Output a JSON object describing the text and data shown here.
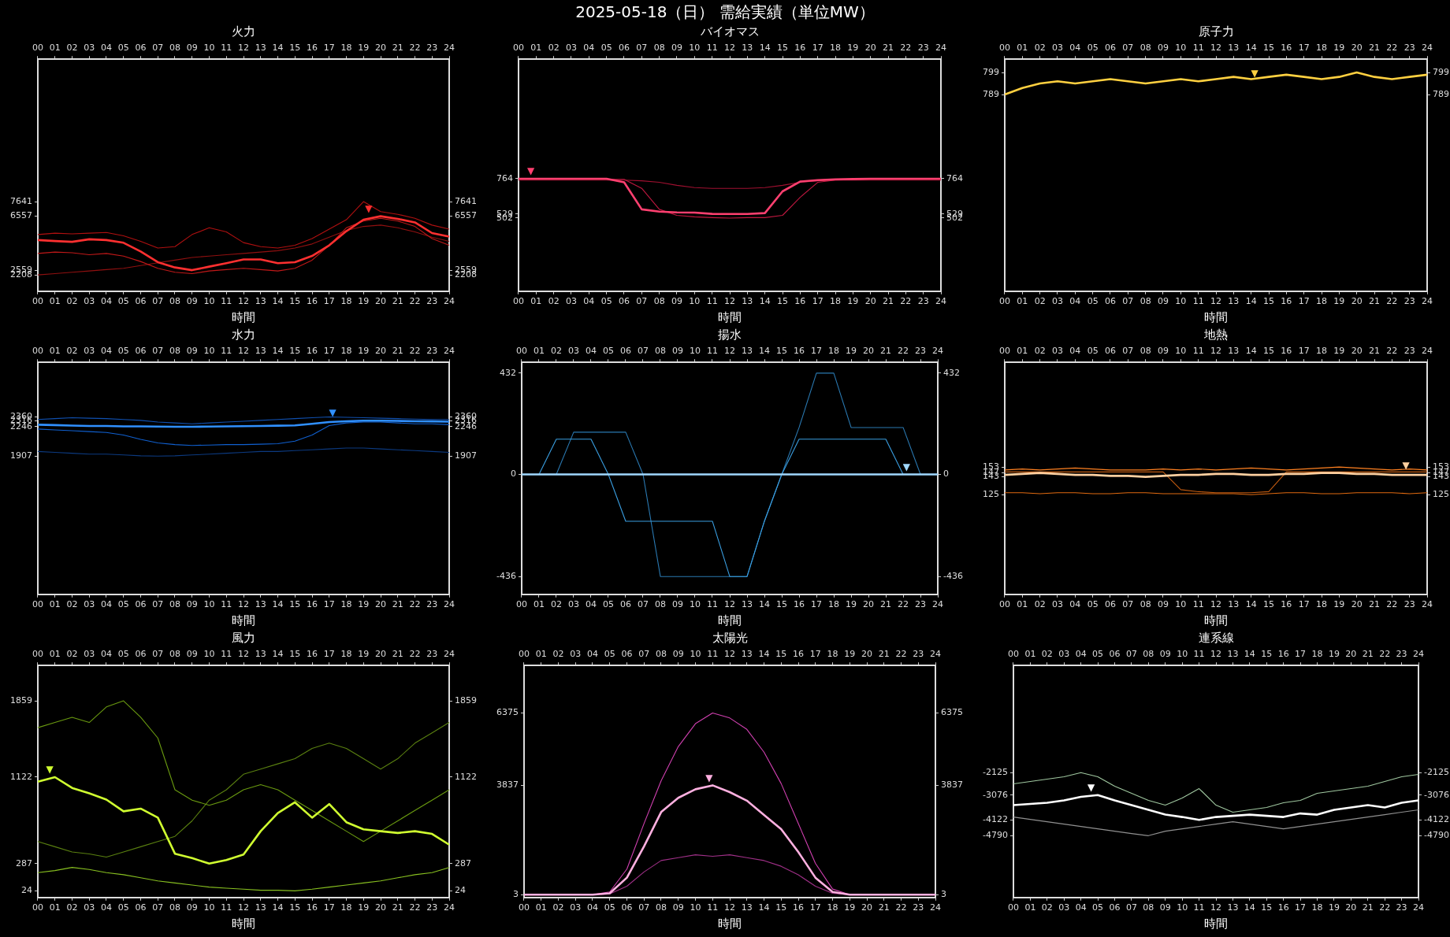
{
  "chart_data": [
    {
      "type": "line",
      "title": "火力",
      "xlabel": "時間",
      "annotations": [
        "2025-05-18（日） 需給実績（単位MW）",
        {
          "text": "▼",
          "x": 19.3,
          "y": 6557
        }
      ],
      "grid": false,
      "legend": false,
      "marker": "none",
      "line_style": "solid",
      "x": [
        0,
        1,
        2,
        3,
        4,
        5,
        6,
        7,
        8,
        9,
        10,
        11,
        12,
        13,
        14,
        15,
        16,
        17,
        18,
        19,
        20,
        21,
        22,
        23,
        24
      ],
      "xlim": [
        0,
        24
      ],
      "xticks": [
        {
          "value": 0,
          "label": "00"
        },
        {
          "value": 1,
          "label": "01"
        },
        {
          "value": 2,
          "label": "02"
        },
        {
          "value": 3,
          "label": "03"
        },
        {
          "value": 4,
          "label": "04"
        },
        {
          "value": 5,
          "label": "05"
        },
        {
          "value": 6,
          "label": "06"
        },
        {
          "value": 7,
          "label": "07"
        },
        {
          "value": 8,
          "label": "08"
        },
        {
          "value": 9,
          "label": "09"
        },
        10,
        11,
        12,
        13,
        14,
        15,
        16,
        17,
        18,
        19,
        20,
        21,
        22,
        23,
        24
      ],
      "x2lim": [
        0,
        24
      ],
      "x2ticks": [
        {
          "value": 0,
          "label": "00"
        },
        {
          "value": 1,
          "label": "01"
        },
        {
          "value": 2,
          "label": "02"
        },
        {
          "value": 3,
          "label": "03"
        },
        {
          "value": 4,
          "label": "04"
        },
        {
          "value": 5,
          "label": "05"
        },
        {
          "value": 6,
          "label": "06"
        },
        {
          "value": 7,
          "label": "07"
        },
        {
          "value": 8,
          "label": "08"
        },
        {
          "value": 9,
          "label": "09"
        },
        10,
        11,
        12,
        13,
        14,
        15,
        16,
        17,
        18,
        19,
        20,
        21,
        22,
        23,
        24
      ],
      "ylim": [
        1000,
        18200
      ],
      "yticks": [
        2208,
        2559,
        6557,
        7641
      ],
      "y2lim": [
        1000,
        18200
      ],
      "y2ticks": [
        2208,
        2559,
        6557,
        7641
      ],
      "series": [
        {
          "color": "#ff3030",
          "values": [
            4790,
            4720,
            4660,
            4850,
            4790,
            4590,
            3940,
            3150,
            2760,
            2559,
            2820,
            3080,
            3350,
            3350,
            3080,
            3150,
            3610,
            4400,
            5450,
            6300,
            6557,
            6360,
            6100,
            5310,
            5050
          ]
        },
        {
          "color": "#b01010",
          "values": [
            5200,
            5300,
            5250,
            5300,
            5350,
            5100,
            4700,
            4200,
            4300,
            5200,
            5700,
            5400,
            4600,
            4300,
            4200,
            4400,
            4900,
            5600,
            6300,
            7641,
            6900,
            6700,
            6400,
            5900,
            5600
          ]
        },
        {
          "color": "#c01818",
          "values": [
            3800,
            3900,
            3850,
            3700,
            3800,
            3600,
            3200,
            2700,
            2400,
            2300,
            2500,
            2600,
            2700,
            2600,
            2500,
            2700,
            3300,
            4400,
            5700,
            6200,
            6400,
            6200,
            5800,
            4900,
            4400
          ]
        },
        {
          "color": "#901010",
          "values": [
            2208,
            2300,
            2400,
            2500,
            2600,
            2700,
            2900,
            3100,
            3300,
            3500,
            3600,
            3700,
            3800,
            3900,
            4000,
            4200,
            4500,
            5000,
            5500,
            5800,
            5900,
            5700,
            5400,
            5000,
            4700
          ]
        }
      ]
    },
    {
      "type": "line",
      "title": "バイオマス",
      "xlabel": "時間",
      "annotations": [
        {
          "text": "▼",
          "x": 0.7,
          "y": 764
        }
      ],
      "grid": false,
      "legend": false,
      "marker": "none",
      "line_style": "solid",
      "x": [
        0,
        1,
        2,
        3,
        4,
        5,
        6,
        7,
        8,
        9,
        10,
        11,
        12,
        13,
        14,
        15,
        16,
        17,
        18,
        19,
        20,
        21,
        22,
        23,
        24
      ],
      "xlim": [
        0,
        24
      ],
      "xticks": [
        {
          "value": 0,
          "label": "00"
        },
        {
          "value": 1,
          "label": "01"
        },
        {
          "value": 2,
          "label": "02"
        },
        {
          "value": 3,
          "label": "03"
        },
        {
          "value": 4,
          "label": "04"
        },
        {
          "value": 5,
          "label": "05"
        },
        {
          "value": 6,
          "label": "06"
        },
        {
          "value": 7,
          "label": "07"
        },
        {
          "value": 8,
          "label": "08"
        },
        {
          "value": 9,
          "label": "09"
        },
        10,
        11,
        12,
        13,
        14,
        15,
        16,
        17,
        18,
        19,
        20,
        21,
        22,
        23,
        24
      ],
      "x2lim": [
        0,
        24
      ],
      "x2ticks": [
        {
          "value": 0,
          "label": "00"
        },
        {
          "value": 1,
          "label": "01"
        },
        {
          "value": 2,
          "label": "02"
        },
        {
          "value": 3,
          "label": "03"
        },
        {
          "value": 4,
          "label": "04"
        },
        {
          "value": 5,
          "label": "05"
        },
        {
          "value": 6,
          "label": "06"
        },
        {
          "value": 7,
          "label": "07"
        },
        {
          "value": 8,
          "label": "08"
        },
        {
          "value": 9,
          "label": "09"
        },
        10,
        11,
        12,
        13,
        14,
        15,
        16,
        17,
        18,
        19,
        20,
        21,
        22,
        23,
        24
      ],
      "ylim": [
        15,
        1560
      ],
      "yticks": [
        502,
        529,
        764
      ],
      "y2lim": [
        15,
        1560
      ],
      "y2ticks": [
        502,
        529,
        764
      ],
      "series": [
        {
          "color": "#ff4070",
          "values": [
            764,
            764,
            764,
            764,
            764,
            764,
            740,
            560,
            545,
            540,
            538,
            530,
            529,
            529,
            535,
            680,
            745,
            755,
            760,
            762,
            764,
            764,
            764,
            764,
            764
          ]
        },
        {
          "color": "#c01840",
          "values": [
            760,
            760,
            760,
            760,
            760,
            760,
            760,
            700,
            560,
            520,
            510,
            505,
            502,
            505,
            505,
            520,
            640,
            740,
            755,
            758,
            760,
            760,
            760,
            760,
            760
          ]
        },
        {
          "color": "#a01030",
          "values": [
            755,
            755,
            755,
            755,
            755,
            755,
            755,
            750,
            740,
            720,
            705,
            700,
            700,
            700,
            705,
            720,
            740,
            750,
            755,
            755,
            755,
            755,
            755,
            755,
            755
          ]
        }
      ]
    },
    {
      "type": "line",
      "title": "原子力",
      "xlabel": "時間",
      "annotations": [
        {
          "text": "▼",
          "x": 14.2,
          "y": 795
        }
      ],
      "grid": false,
      "legend": false,
      "marker": "none",
      "line_style": "solid",
      "x": [
        0,
        1,
        2,
        3,
        4,
        5,
        6,
        7,
        8,
        9,
        10,
        11,
        12,
        13,
        14,
        15,
        16,
        17,
        18,
        19,
        20,
        21,
        22,
        23,
        24
      ],
      "xlim": [
        0,
        24
      ],
      "xticks": [
        {
          "value": 0,
          "label": "00"
        },
        {
          "value": 1,
          "label": "01"
        },
        {
          "value": 2,
          "label": "02"
        },
        {
          "value": 3,
          "label": "03"
        },
        {
          "value": 4,
          "label": "04"
        },
        {
          "value": 5,
          "label": "05"
        },
        {
          "value": 6,
          "label": "06"
        },
        {
          "value": 7,
          "label": "07"
        },
        {
          "value": 8,
          "label": "08"
        },
        {
          "value": 9,
          "label": "09"
        },
        10,
        11,
        12,
        13,
        14,
        15,
        16,
        17,
        18,
        19,
        20,
        21,
        22,
        23,
        24
      ],
      "x2lim": [
        0,
        24
      ],
      "x2ticks": [
        {
          "value": 0,
          "label": "00"
        },
        {
          "value": 1,
          "label": "01"
        },
        {
          "value": 2,
          "label": "02"
        },
        {
          "value": 3,
          "label": "03"
        },
        {
          "value": 4,
          "label": "04"
        },
        {
          "value": 5,
          "label": "05"
        },
        {
          "value": 6,
          "label": "06"
        },
        {
          "value": 7,
          "label": "07"
        },
        {
          "value": 8,
          "label": "08"
        },
        {
          "value": 9,
          "label": "09"
        },
        10,
        11,
        12,
        13,
        14,
        15,
        16,
        17,
        18,
        19,
        20,
        21,
        22,
        23,
        24
      ],
      "ylim": [
        700,
        805
      ],
      "yticks": [
        789,
        799
      ],
      "y2lim": [
        700,
        805
      ],
      "y2ticks": [
        789,
        799
      ],
      "series": [
        {
          "color": "#ffd040",
          "values": [
            789,
            792,
            794,
            795,
            794,
            795,
            796,
            795,
            794,
            795,
            796,
            795,
            796,
            797,
            796,
            797,
            798,
            797,
            796,
            797,
            799,
            797,
            796,
            797,
            798
          ]
        }
      ]
    },
    {
      "type": "line",
      "title": "水力",
      "xlabel": "時間",
      "annotations": [
        {
          "text": "▼",
          "x": 17.2,
          "y": 2316
        }
      ],
      "grid": false,
      "legend": false,
      "marker": "none",
      "line_style": "solid",
      "x": [
        0,
        1,
        2,
        3,
        4,
        5,
        6,
        7,
        8,
        9,
        10,
        11,
        12,
        13,
        14,
        15,
        16,
        17,
        18,
        19,
        20,
        21,
        22,
        23,
        24
      ],
      "xlim": [
        0,
        24
      ],
      "xticks": [
        {
          "value": 0,
          "label": "00"
        },
        {
          "value": 1,
          "label": "01"
        },
        {
          "value": 2,
          "label": "02"
        },
        {
          "value": 3,
          "label": "03"
        },
        {
          "value": 4,
          "label": "04"
        },
        {
          "value": 5,
          "label": "05"
        },
        {
          "value": 6,
          "label": "06"
        },
        {
          "value": 7,
          "label": "07"
        },
        {
          "value": 8,
          "label": "08"
        },
        {
          "value": 9,
          "label": "09"
        },
        10,
        11,
        12,
        13,
        14,
        15,
        16,
        17,
        18,
        19,
        20,
        21,
        22,
        23,
        24
      ],
      "x2lim": [
        0,
        24
      ],
      "x2ticks": [
        {
          "value": 0,
          "label": "00"
        },
        {
          "value": 1,
          "label": "01"
        },
        {
          "value": 2,
          "label": "02"
        },
        {
          "value": 3,
          "label": "03"
        },
        {
          "value": 4,
          "label": "04"
        },
        {
          "value": 5,
          "label": "05"
        },
        {
          "value": 6,
          "label": "06"
        },
        {
          "value": 7,
          "label": "07"
        },
        {
          "value": 8,
          "label": "08"
        },
        {
          "value": 9,
          "label": "09"
        },
        10,
        11,
        12,
        13,
        14,
        15,
        16,
        17,
        18,
        19,
        20,
        21,
        22,
        23,
        24
      ],
      "ylim": [
        310,
        2990
      ],
      "yticks": [
        1907,
        2246,
        2316,
        2360
      ],
      "y2lim": [
        310,
        2990
      ],
      "y2ticks": [
        1907,
        2246,
        2316,
        2360
      ],
      "series": [
        {
          "color": "#3090ff",
          "values": [
            2270,
            2265,
            2260,
            2255,
            2255,
            2250,
            2250,
            2248,
            2246,
            2246,
            2248,
            2250,
            2252,
            2255,
            2258,
            2262,
            2280,
            2300,
            2310,
            2316,
            2316,
            2314,
            2310,
            2308,
            2305
          ]
        },
        {
          "color": "#1060d0",
          "values": [
            2220,
            2210,
            2200,
            2190,
            2180,
            2150,
            2100,
            2060,
            2040,
            2030,
            2035,
            2040,
            2040,
            2045,
            2050,
            2080,
            2150,
            2260,
            2290,
            2300,
            2300,
            2290,
            2280,
            2280,
            2270
          ]
        },
        {
          "color": "#0c3a80",
          "values": [
            1960,
            1950,
            1940,
            1930,
            1930,
            1920,
            1910,
            1907,
            1910,
            1920,
            1930,
            1940,
            1950,
            1960,
            1960,
            1970,
            1980,
            1990,
            2000,
            2000,
            1990,
            1980,
            1970,
            1960,
            1950
          ]
        },
        {
          "color": "#1050b0",
          "values": [
            2330,
            2340,
            2350,
            2345,
            2340,
            2330,
            2320,
            2300,
            2290,
            2280,
            2290,
            2300,
            2310,
            2320,
            2330,
            2340,
            2350,
            2360,
            2355,
            2350,
            2345,
            2340,
            2335,
            2330,
            2330
          ]
        }
      ]
    },
    {
      "type": "line",
      "title": "揚水",
      "xlabel": "時間",
      "annotations": [
        {
          "text": "▼",
          "x": 22.2,
          "y": 0
        }
      ],
      "grid": false,
      "legend": false,
      "marker": "none",
      "line_style": "solid",
      "x": [
        0,
        1,
        2,
        3,
        4,
        5,
        6,
        7,
        8,
        9,
        10,
        11,
        12,
        13,
        14,
        15,
        16,
        17,
        18,
        19,
        20,
        21,
        22,
        23,
        24
      ],
      "xlim": [
        0,
        24
      ],
      "xticks": [
        {
          "value": 0,
          "label": "00"
        },
        {
          "value": 1,
          "label": "01"
        },
        {
          "value": 2,
          "label": "02"
        },
        {
          "value": 3,
          "label": "03"
        },
        {
          "value": 4,
          "label": "04"
        },
        {
          "value": 5,
          "label": "05"
        },
        {
          "value": 6,
          "label": "06"
        },
        {
          "value": 7,
          "label": "07"
        },
        {
          "value": 8,
          "label": "08"
        },
        {
          "value": 9,
          "label": "09"
        },
        10,
        11,
        12,
        13,
        14,
        15,
        16,
        17,
        18,
        19,
        20,
        21,
        22,
        23,
        24
      ],
      "x2lim": [
        0,
        24
      ],
      "x2ticks": [
        {
          "value": 0,
          "label": "00"
        },
        {
          "value": 1,
          "label": "01"
        },
        {
          "value": 2,
          "label": "02"
        },
        {
          "value": 3,
          "label": "03"
        },
        {
          "value": 4,
          "label": "04"
        },
        {
          "value": 5,
          "label": "05"
        },
        {
          "value": 6,
          "label": "06"
        },
        {
          "value": 7,
          "label": "07"
        },
        {
          "value": 8,
          "label": "08"
        },
        {
          "value": 9,
          "label": "09"
        },
        10,
        11,
        12,
        13,
        14,
        15,
        16,
        17,
        18,
        19,
        20,
        21,
        22,
        23,
        24
      ],
      "ylim": [
        -512,
        478
      ],
      "yticks": [
        -436,
        0,
        432
      ],
      "y2lim": [
        -512,
        478
      ],
      "y2ticks": [
        -436,
        0,
        432
      ],
      "series": [
        {
          "color": "#a0d8ff",
          "values": [
            0,
            0,
            0,
            0,
            0,
            0,
            0,
            0,
            0,
            0,
            0,
            0,
            0,
            0,
            0,
            0,
            0,
            0,
            0,
            0,
            0,
            0,
            0,
            0,
            0
          ]
        },
        {
          "color": "#3a9ee0",
          "values": [
            0,
            0,
            150,
            150,
            150,
            0,
            -200,
            -200,
            -200,
            -200,
            -200,
            -200,
            -436,
            -436,
            -200,
            0,
            150,
            150,
            150,
            150,
            150,
            150,
            0,
            0,
            0
          ]
        },
        {
          "color": "#2a78b0",
          "values": [
            0,
            0,
            0,
            180,
            180,
            180,
            180,
            0,
            -436,
            -436,
            -436,
            -436,
            -436,
            -436,
            -200,
            0,
            200,
            432,
            432,
            200,
            200,
            200,
            200,
            0,
            0
          ]
        }
      ]
    },
    {
      "type": "line",
      "title": "地熱",
      "xlabel": "時間",
      "annotations": [
        {
          "text": "▼",
          "x": 22.8,
          "y": 147
        }
      ],
      "grid": false,
      "legend": false,
      "marker": "none",
      "line_style": "solid",
      "x": [
        0,
        1,
        2,
        3,
        4,
        5,
        6,
        7,
        8,
        9,
        10,
        11,
        12,
        13,
        14,
        15,
        16,
        17,
        18,
        19,
        20,
        21,
        22,
        23,
        24
      ],
      "xlim": [
        0,
        24
      ],
      "xticks": [
        {
          "value": 0,
          "label": "00"
        },
        {
          "value": 1,
          "label": "01"
        },
        {
          "value": 2,
          "label": "02"
        },
        {
          "value": 3,
          "label": "03"
        },
        {
          "value": 4,
          "label": "04"
        },
        {
          "value": 5,
          "label": "05"
        },
        {
          "value": 6,
          "label": "06"
        },
        {
          "value": 7,
          "label": "07"
        },
        {
          "value": 8,
          "label": "08"
        },
        {
          "value": 9,
          "label": "09"
        },
        10,
        11,
        12,
        13,
        14,
        15,
        16,
        17,
        18,
        19,
        20,
        21,
        22,
        23,
        24
      ],
      "x2lim": [
        0,
        24
      ],
      "x2ticks": [
        {
          "value": 0,
          "label": "00"
        },
        {
          "value": 1,
          "label": "01"
        },
        {
          "value": 2,
          "label": "02"
        },
        {
          "value": 3,
          "label": "03"
        },
        {
          "value": 4,
          "label": "04"
        },
        {
          "value": 5,
          "label": "05"
        },
        {
          "value": 6,
          "label": "06"
        },
        {
          "value": 7,
          "label": "07"
        },
        {
          "value": 8,
          "label": "08"
        },
        {
          "value": 9,
          "label": "09"
        },
        10,
        11,
        12,
        13,
        14,
        15,
        16,
        17,
        18,
        19,
        20,
        21,
        22,
        23,
        24
      ],
      "ylim": [
        24,
        259
      ],
      "yticks": [
        125,
        143,
        147,
        153
      ],
      "y2lim": [
        24,
        259
      ],
      "y2ticks": [
        125,
        143,
        147,
        153
      ],
      "series": [
        {
          "color": "#ffd0a0",
          "values": [
            145,
            146,
            147,
            146,
            145,
            145,
            144,
            144,
            143,
            144,
            145,
            145,
            146,
            146,
            145,
            145,
            146,
            146,
            147,
            147,
            146,
            146,
            145,
            145,
            145
          ]
        },
        {
          "color": "#ff8020",
          "values": [
            150,
            151,
            150,
            151,
            152,
            151,
            150,
            150,
            150,
            151,
            150,
            151,
            150,
            151,
            152,
            151,
            150,
            151,
            152,
            153,
            152,
            151,
            150,
            151,
            150
          ]
        },
        {
          "color": "#e06a10",
          "values": [
            127,
            127,
            126,
            127,
            127,
            126,
            126,
            127,
            127,
            126,
            126,
            126,
            126,
            126,
            125,
            126,
            127,
            127,
            126,
            126,
            127,
            127,
            127,
            126,
            127
          ]
        },
        {
          "color": "#c05a10",
          "values": [
            148,
            148,
            148,
            148,
            148,
            148,
            148,
            148,
            148,
            148,
            130,
            128,
            127,
            127,
            127,
            128,
            148,
            148,
            148,
            148,
            148,
            148,
            148,
            148,
            148
          ]
        }
      ]
    },
    {
      "type": "line",
      "title": "風力",
      "xlabel": "時間",
      "annotations": [
        {
          "text": "▼",
          "x": 0.7,
          "y": 1122
        }
      ],
      "grid": false,
      "legend": false,
      "marker": "none",
      "line_style": "solid",
      "x": [
        0,
        1,
        2,
        3,
        4,
        5,
        6,
        7,
        8,
        9,
        10,
        11,
        12,
        13,
        14,
        15,
        16,
        17,
        18,
        19,
        20,
        21,
        22,
        23,
        24
      ],
      "xlim": [
        0,
        24
      ],
      "xticks": [
        {
          "value": 0,
          "label": "00"
        },
        {
          "value": 1,
          "label": "01"
        },
        {
          "value": 2,
          "label": "02"
        },
        {
          "value": 3,
          "label": "03"
        },
        {
          "value": 4,
          "label": "04"
        },
        {
          "value": 5,
          "label": "05"
        },
        {
          "value": 6,
          "label": "06"
        },
        {
          "value": 7,
          "label": "07"
        },
        {
          "value": 8,
          "label": "08"
        },
        {
          "value": 9,
          "label": "09"
        },
        10,
        11,
        12,
        13,
        14,
        15,
        16,
        17,
        18,
        19,
        20,
        21,
        22,
        23,
        24
      ],
      "x2lim": [
        0,
        24
      ],
      "x2ticks": [
        {
          "value": 0,
          "label": "00"
        },
        {
          "value": 1,
          "label": "01"
        },
        {
          "value": 2,
          "label": "02"
        },
        {
          "value": 3,
          "label": "03"
        },
        {
          "value": 4,
          "label": "04"
        },
        {
          "value": 5,
          "label": "05"
        },
        {
          "value": 6,
          "label": "06"
        },
        {
          "value": 7,
          "label": "07"
        },
        {
          "value": 8,
          "label": "08"
        },
        {
          "value": 9,
          "label": "09"
        },
        10,
        11,
        12,
        13,
        14,
        15,
        16,
        17,
        18,
        19,
        20,
        21,
        22,
        23,
        24
      ],
      "ylim": [
        -40,
        2200
      ],
      "yticks": [
        24,
        287,
        1122,
        1859
      ],
      "y2lim": [
        -40,
        2200
      ],
      "y2ticks": [
        24,
        287,
        1122,
        1859
      ],
      "series": [
        {
          "color": "#d0ff30",
          "values": [
            1078,
            1122,
            1018,
            966,
            905,
            792,
            818,
            731,
            383,
            340,
            287,
            322,
            374,
            600,
            775,
            879,
            731,
            862,
            687,
            618,
            600,
            583,
            600,
            574,
            470
          ]
        },
        {
          "color": "#6a9a10",
          "values": [
            1600,
            1650,
            1700,
            1650,
            1800,
            1859,
            1700,
            1500,
            1000,
            900,
            850,
            900,
            1000,
            1050,
            1000,
            900,
            800,
            700,
            600,
            500,
            600,
            700,
            800,
            900,
            1000
          ]
        },
        {
          "color": "#88c020",
          "values": [
            200,
            220,
            250,
            230,
            200,
            180,
            150,
            120,
            100,
            80,
            60,
            50,
            40,
            30,
            30,
            24,
            40,
            60,
            80,
            100,
            120,
            150,
            180,
            200,
            250
          ]
        },
        {
          "color": "#5a8010",
          "values": [
            500,
            450,
            400,
            380,
            350,
            400,
            450,
            500,
            550,
            700,
            900,
            1000,
            1150,
            1200,
            1250,
            1300,
            1400,
            1450,
            1400,
            1300,
            1200,
            1300,
            1450,
            1550,
            1650
          ]
        }
      ]
    },
    {
      "type": "line",
      "title": "太陽光",
      "xlabel": "時間",
      "annotations": [
        {
          "text": "▼",
          "x": 10.8,
          "y": 3837
        }
      ],
      "grid": false,
      "legend": false,
      "marker": "none",
      "line_style": "solid",
      "x": [
        0,
        1,
        2,
        3,
        4,
        5,
        6,
        7,
        8,
        9,
        10,
        11,
        12,
        13,
        14,
        15,
        16,
        17,
        18,
        19,
        20,
        21,
        22,
        23,
        24
      ],
      "xlim": [
        0,
        24
      ],
      "xticks": [
        {
          "value": 0,
          "label": "00"
        },
        {
          "value": 1,
          "label": "01"
        },
        {
          "value": 2,
          "label": "02"
        },
        {
          "value": 3,
          "label": "03"
        },
        {
          "value": 4,
          "label": "04"
        },
        {
          "value": 5,
          "label": "05"
        },
        {
          "value": 6,
          "label": "06"
        },
        {
          "value": 7,
          "label": "07"
        },
        {
          "value": 8,
          "label": "08"
        },
        {
          "value": 9,
          "label": "09"
        },
        10,
        11,
        12,
        13,
        14,
        15,
        16,
        17,
        18,
        19,
        20,
        21,
        22,
        23,
        24
      ],
      "x2lim": [
        0,
        24
      ],
      "x2ticks": [
        {
          "value": 0,
          "label": "00"
        },
        {
          "value": 1,
          "label": "01"
        },
        {
          "value": 2,
          "label": "02"
        },
        {
          "value": 3,
          "label": "03"
        },
        {
          "value": 4,
          "label": "04"
        },
        {
          "value": 5,
          "label": "05"
        },
        {
          "value": 6,
          "label": "06"
        },
        {
          "value": 7,
          "label": "07"
        },
        {
          "value": 8,
          "label": "08"
        },
        {
          "value": 9,
          "label": "09"
        },
        10,
        11,
        12,
        13,
        14,
        15,
        16,
        17,
        18,
        19,
        20,
        21,
        22,
        23,
        24
      ],
      "ylim": [
        -95,
        8040
      ],
      "yticks": [
        3,
        3837,
        6375
      ],
      "y2lim": [
        -95,
        8040
      ],
      "y2ticks": [
        3,
        3837,
        6375
      ],
      "series": [
        {
          "color": "#ffb0e0",
          "values": [
            3,
            3,
            3,
            3,
            3,
            50,
            600,
            1700,
            2900,
            3400,
            3700,
            3837,
            3600,
            3300,
            2800,
            2300,
            1500,
            600,
            100,
            3,
            3,
            3,
            3,
            3,
            3
          ]
        },
        {
          "color": "#d040b0",
          "values": [
            null,
            null,
            null,
            null,
            3,
            100,
            900,
            2500,
            4000,
            5200,
            6000,
            6375,
            6200,
            5800,
            5000,
            3900,
            2500,
            1100,
            200,
            3,
            null,
            null,
            null,
            null,
            null
          ]
        },
        {
          "color": "#a03088",
          "values": [
            null,
            null,
            null,
            null,
            3,
            30,
            300,
            800,
            1200,
            1300,
            1400,
            1350,
            1400,
            1300,
            1200,
            1000,
            700,
            300,
            50,
            3,
            null,
            null,
            null,
            null,
            null
          ]
        }
      ]
    },
    {
      "type": "line",
      "title": "連系線",
      "xlabel": "時間",
      "annotations": [
        {
          "text": "▼",
          "x": 4.6,
          "y": -3076
        }
      ],
      "grid": false,
      "legend": false,
      "marker": "none",
      "line_style": "solid",
      "x": [
        0,
        1,
        2,
        3,
        4,
        5,
        6,
        7,
        8,
        9,
        10,
        11,
        12,
        13,
        14,
        15,
        16,
        17,
        18,
        19,
        20,
        21,
        22,
        23,
        24
      ],
      "xlim": [
        0,
        24
      ],
      "xticks": [
        {
          "value": 0,
          "label": "00"
        },
        {
          "value": 1,
          "label": "01"
        },
        {
          "value": 2,
          "label": "02"
        },
        {
          "value": 3,
          "label": "03"
        },
        {
          "value": 4,
          "label": "04"
        },
        {
          "value": 5,
          "label": "05"
        },
        {
          "value": 6,
          "label": "06"
        },
        {
          "value": 7,
          "label": "07"
        },
        {
          "value": 8,
          "label": "08"
        },
        {
          "value": 9,
          "label": "09"
        },
        10,
        11,
        12,
        13,
        14,
        15,
        16,
        17,
        18,
        19,
        20,
        21,
        22,
        23,
        24
      ],
      "x2lim": [
        0,
        24
      ],
      "x2ticks": [
        {
          "value": 0,
          "label": "00"
        },
        {
          "value": 1,
          "label": "01"
        },
        {
          "value": 2,
          "label": "02"
        },
        {
          "value": 3,
          "label": "03"
        },
        {
          "value": 4,
          "label": "04"
        },
        {
          "value": 5,
          "label": "05"
        },
        {
          "value": 6,
          "label": "06"
        },
        {
          "value": 7,
          "label": "07"
        },
        {
          "value": 8,
          "label": "08"
        },
        {
          "value": 9,
          "label": "09"
        },
        10,
        11,
        12,
        13,
        14,
        15,
        16,
        17,
        18,
        19,
        20,
        21,
        22,
        23,
        24
      ],
      "ylim": [
        -7400,
        2400
      ],
      "yticks": [
        -4790,
        -4122,
        -3076,
        -2125
      ],
      "y2lim": [
        -7400,
        2400
      ],
      "y2ticks": [
        -4790,
        -4122,
        -3076,
        -2125
      ],
      "series": [
        {
          "color": "#ffffff",
          "values": [
            -3500,
            -3450,
            -3400,
            -3300,
            -3150,
            -3076,
            -3300,
            -3500,
            -3700,
            -3900,
            -4000,
            -4122,
            -4000,
            -3950,
            -3900,
            -3950,
            -4000,
            -3850,
            -3900,
            -3700,
            -3600,
            -3500,
            -3600,
            -3400,
            -3300
          ]
        },
        {
          "color": "#a0c8a0",
          "values": [
            -2600,
            -2500,
            -2400,
            -2300,
            -2125,
            -2300,
            -2700,
            -3000,
            -3300,
            -3500,
            -3200,
            -2800,
            -3500,
            -3800,
            -3700,
            -3600,
            -3400,
            -3300,
            -3000,
            -2900,
            -2800,
            -2700,
            -2500,
            -2300,
            -2200
          ]
        },
        {
          "color": "#909090",
          "values": [
            -4000,
            -4100,
            -4200,
            -4300,
            -4400,
            -4500,
            -4600,
            -4700,
            -4790,
            -4600,
            -4500,
            -4400,
            -4300,
            -4200,
            -4300,
            -4400,
            -4500,
            -4400,
            -4300,
            -4200,
            -4100,
            -4000,
            -3900,
            -3800,
            -3700
          ]
        }
      ]
    }
  ]
}
